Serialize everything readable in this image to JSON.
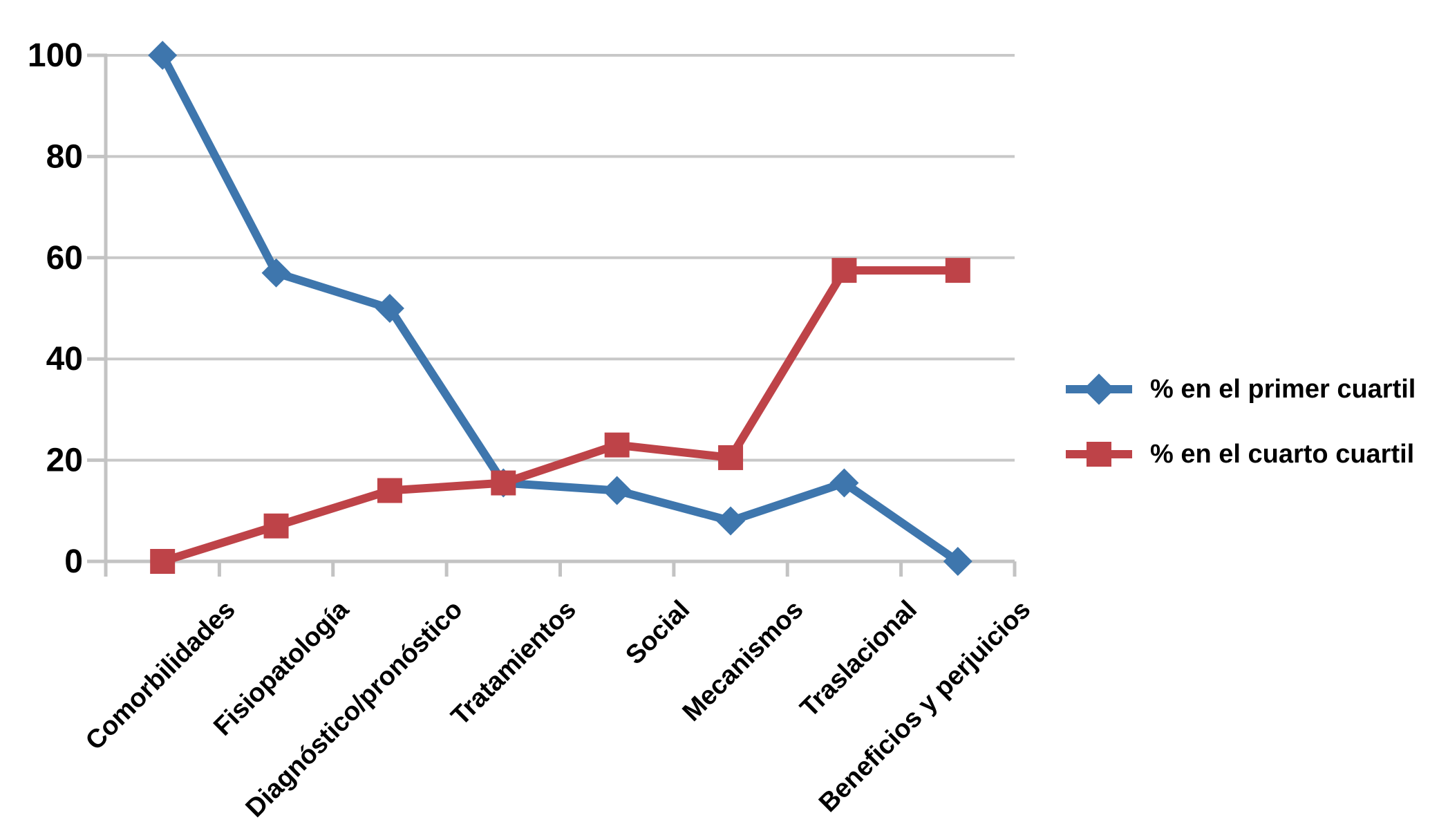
{
  "chart_data": {
    "type": "line",
    "title": "",
    "categories": [
      "Comorbilidades",
      "Fisiopatología",
      "Diagnóstico/pronóstico",
      "Tratamientos",
      "Social",
      "Mecanismos",
      "Traslacional",
      "Beneficios y perjuicios"
    ],
    "series": [
      {
        "name": "% en el primer cuartil",
        "marker": "diamond",
        "color": "#3E76AD",
        "values": [
          100,
          57,
          50,
          15.5,
          14,
          8,
          15.5,
          0
        ]
      },
      {
        "name": "% en el cuarto cuartil",
        "marker": "square",
        "color": "#BE4348",
        "values": [
          0,
          7,
          14,
          15.5,
          23,
          20.5,
          57.5,
          57.5
        ]
      }
    ],
    "y_axis": {
      "min": 0,
      "max": 100,
      "ticks": [
        0,
        20,
        40,
        60,
        80,
        100
      ]
    },
    "x_axis": {
      "label_rotation_degrees": -45
    },
    "grid": "horizontal",
    "legend_position": "right-middle",
    "colors": {
      "gridline": "#C8C8C8",
      "axis": "#C3C3C3",
      "label": "#000000",
      "background": "#FFFFFF"
    }
  }
}
